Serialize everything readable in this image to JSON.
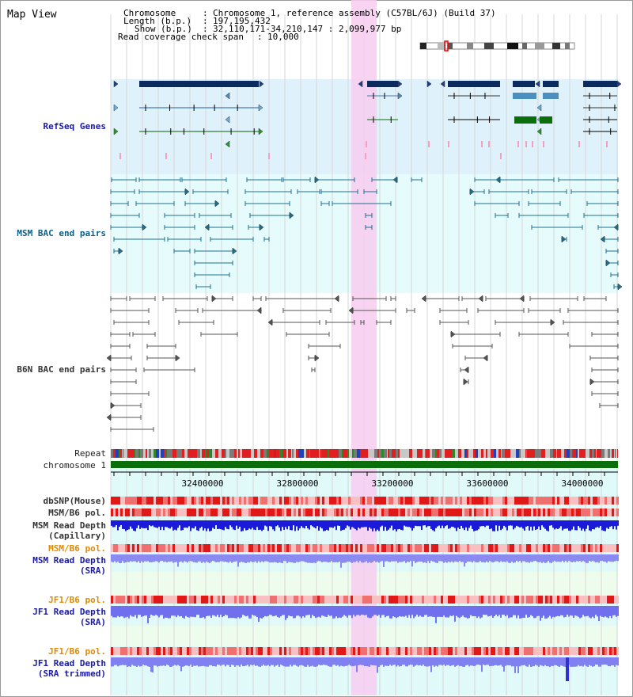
{
  "header": {
    "title": "Map View",
    "chromosome_key": "Chromosome",
    "chromosome_val": "Chromosome 1, reference assembly (C57BL/6J) (Build 37)",
    "length_key": "Length (b.p.)",
    "length_val": "197,195,432",
    "show_key": "Show (b.p.)",
    "show_val": "32,110,171-34,210,147 : 2,099,977 bp",
    "span_key": "Read coverage check span",
    "span_val": "10,000",
    "sep": ":"
  },
  "tracks": {
    "refseq": "RefSeq Genes",
    "msm_bac": "MSM BAC end pairs",
    "b6n_bac": "B6N BAC end pairs",
    "repeat": "Repeat",
    "chromosome": "chromosome 1",
    "dbsnp": "dbSNP(Mouse)",
    "msm_b6_pol_1": "MSM/B6 pol.",
    "msm_read_depth_1": "MSM Read Depth",
    "msm_read_depth_1b": "(Capillary)",
    "msm_b6_pol_2": "MSM/B6 pol.",
    "msm_read_depth_2": "MSM Read Depth",
    "msm_read_depth_2b": "(SRA)",
    "jf1_b6_pol_1": "JF1/B6 pol.",
    "jf1_read_depth_1": "JF1 Read Depth",
    "jf1_read_depth_1b": "(SRA)",
    "jf1_b6_pol_2": "JF1/B6 pol.",
    "jf1_read_depth_2": "JF1 Read Depth",
    "jf1_read_depth_2b": "(SRA trimmed)"
  },
  "axis": {
    "ticks": [
      "32400000",
      "32800000",
      "33200000",
      "33600000",
      "34000000"
    ]
  },
  "colors": {
    "refseq_bg": "#dff1fb",
    "msm_bg": "#e6fbfb",
    "highlight": "#f7cdf0",
    "gene_dark": "#0b2a5e",
    "gene_mid": "#4a8fc0",
    "gene_green": "#0a6e0a",
    "chromosome_bar": "#0a6e0a",
    "depth_blue": "#1010e0",
    "depth_light": "#7a7af0",
    "snp_red": "#e02020"
  }
}
